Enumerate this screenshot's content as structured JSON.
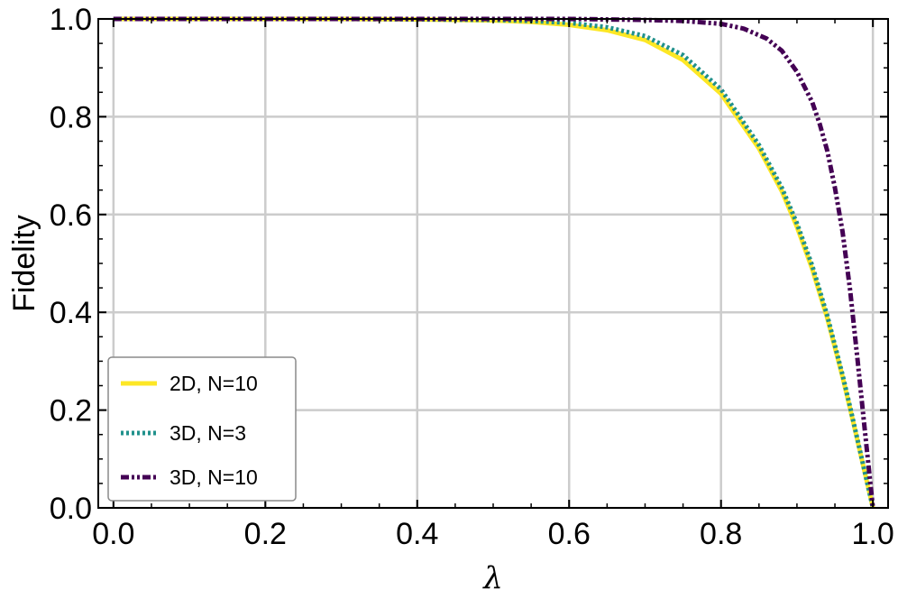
{
  "chart_data": {
    "type": "line",
    "title": "",
    "xlabel": "λ",
    "ylabel": "Fidelity",
    "xlim": [
      -0.02,
      1.02
    ],
    "ylim": [
      0.0,
      1.0
    ],
    "xticks": [
      0.0,
      0.2,
      0.4,
      0.6,
      0.8,
      1.0
    ],
    "xtick_labels": [
      "0.0",
      "0.2",
      "0.4",
      "0.6",
      "0.8",
      "1.0"
    ],
    "yticks": [
      0.0,
      0.2,
      0.4,
      0.6,
      0.8,
      1.0
    ],
    "ytick_labels": [
      "0.0",
      "0.2",
      "0.4",
      "0.6",
      "0.8",
      "1.0"
    ],
    "grid": true,
    "legend_position": "lower-left",
    "series": [
      {
        "name": "2D, N=10",
        "color": "#fde725",
        "style": "solid",
        "x": [
          0.0,
          0.1,
          0.2,
          0.3,
          0.4,
          0.5,
          0.55,
          0.6,
          0.65,
          0.7,
          0.75,
          0.8,
          0.85,
          0.88,
          0.9,
          0.92,
          0.94,
          0.96,
          0.97,
          0.98,
          0.99,
          1.0
        ],
        "y": [
          1.0,
          1.0,
          1.0,
          1.0,
          0.999,
          0.997,
          0.994,
          0.988,
          0.977,
          0.957,
          0.916,
          0.847,
          0.735,
          0.648,
          0.575,
          0.489,
          0.388,
          0.268,
          0.203,
          0.136,
          0.068,
          0.0
        ]
      },
      {
        "name": "3D, N=3",
        "color": "#21918c",
        "style": "dotted",
        "x": [
          0.0,
          0.1,
          0.2,
          0.3,
          0.4,
          0.5,
          0.55,
          0.6,
          0.65,
          0.7,
          0.75,
          0.8,
          0.85,
          0.88,
          0.9,
          0.92,
          0.94,
          0.96,
          0.97,
          0.98,
          0.99,
          1.0
        ],
        "y": [
          1.0,
          1.0,
          1.0,
          1.0,
          0.999,
          0.998,
          0.996,
          0.992,
          0.983,
          0.965,
          0.926,
          0.856,
          0.742,
          0.655,
          0.582,
          0.496,
          0.393,
          0.272,
          0.206,
          0.138,
          0.069,
          0.0
        ]
      },
      {
        "name": "3D, N=10",
        "color": "#440154",
        "style": "dashdot",
        "x": [
          0.0,
          0.2,
          0.4,
          0.6,
          0.7,
          0.75,
          0.8,
          0.83,
          0.86,
          0.88,
          0.9,
          0.92,
          0.93,
          0.94,
          0.95,
          0.96,
          0.97,
          0.98,
          0.99,
          1.0
        ],
        "y": [
          1.0,
          1.0,
          1.0,
          1.0,
          0.998,
          0.996,
          0.99,
          0.98,
          0.96,
          0.935,
          0.892,
          0.83,
          0.785,
          0.73,
          0.655,
          0.565,
          0.445,
          0.3,
          0.15,
          0.0
        ]
      }
    ]
  }
}
